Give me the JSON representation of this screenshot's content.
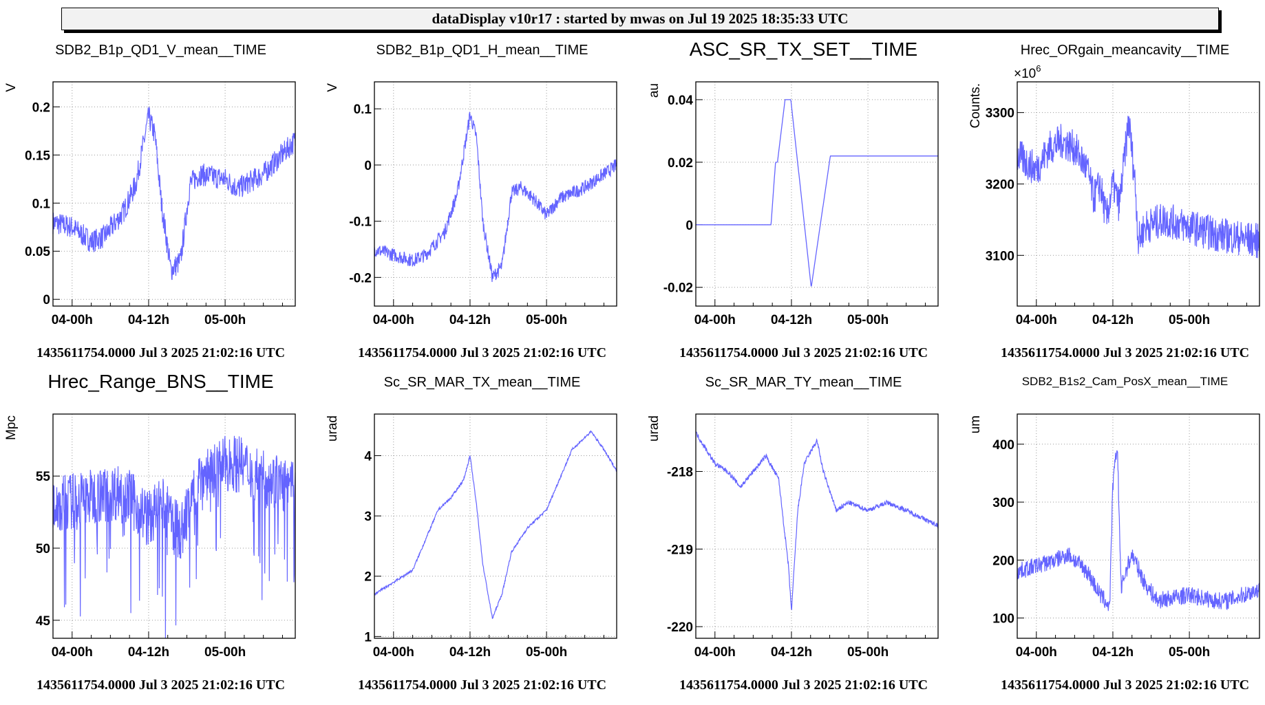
{
  "header": {
    "title": "dataDisplay v10r17 : started by mwas on Jul 19 2025 18:35:33 UTC"
  },
  "footer_text": "1435611754.0000 Jul 3 2025 21:02:16 UTC",
  "chart_data": [
    {
      "type": "line",
      "title": "SDB2_B1p_QD1_V_mean__TIME",
      "ylabel": "V",
      "xticks": [
        {
          "v": 0,
          "label": "04-00h"
        },
        {
          "v": 12,
          "label": "04-12h"
        },
        {
          "v": 24,
          "label": "05-00h"
        }
      ],
      "xlim": [
        -3,
        35
      ],
      "ylim": [
        -0.007,
        0.226
      ],
      "yticks": [
        {
          "v": 0,
          "label": "0"
        },
        {
          "v": 0.05,
          "label": "0.05"
        },
        {
          "v": 0.1,
          "label": "0.1"
        },
        {
          "v": 0.15,
          "label": "0.15"
        },
        {
          "v": 0.2,
          "label": "0.2"
        }
      ],
      "noise": 0.012,
      "x": [
        -3,
        0,
        3,
        5,
        8,
        10,
        12,
        13,
        14,
        15.5,
        17,
        18.5,
        20,
        24,
        26,
        30,
        35
      ],
      "y": [
        0.08,
        0.075,
        0.06,
        0.065,
        0.09,
        0.12,
        0.19,
        0.17,
        0.1,
        0.03,
        0.04,
        0.12,
        0.13,
        0.125,
        0.115,
        0.13,
        0.165
      ],
      "footer": "1435611754.0000 Jul 3 2025 21:02:16 UTC"
    },
    {
      "type": "line",
      "title": "SDB2_B1p_QD1_H_mean__TIME",
      "ylabel": "V",
      "xticks": [
        {
          "v": 0,
          "label": "04-00h"
        },
        {
          "v": 12,
          "label": "04-12h"
        },
        {
          "v": 24,
          "label": "05-00h"
        }
      ],
      "xlim": [
        -3,
        35
      ],
      "ylim": [
        -0.251,
        0.148
      ],
      "yticks": [
        {
          "v": -0.2,
          "label": "-0.2"
        },
        {
          "v": -0.1,
          "label": "-0.1"
        },
        {
          "v": 0,
          "label": "0"
        },
        {
          "v": 0.1,
          "label": "0.1"
        }
      ],
      "noise": 0.012,
      "x": [
        -3,
        0,
        3,
        5,
        8,
        10,
        12,
        13,
        14,
        15.5,
        17,
        18.5,
        20,
        22,
        24,
        26,
        30,
        35
      ],
      "y": [
        -0.15,
        -0.16,
        -0.17,
        -0.16,
        -0.12,
        -0.05,
        0.09,
        0.05,
        -0.1,
        -0.2,
        -0.18,
        -0.05,
        -0.04,
        -0.06,
        -0.09,
        -0.06,
        -0.04,
        0
      ],
      "footer": "1435611754.0000 Jul 3 2025 21:02:16 UTC"
    },
    {
      "type": "line",
      "title": "ASC_SR_TX_SET__TIME",
      "ylabel": "au",
      "xticks": [
        {
          "v": 0,
          "label": "04-00h"
        },
        {
          "v": 12,
          "label": "04-12h"
        },
        {
          "v": 24,
          "label": "05-00h"
        }
      ],
      "xlim": [
        -3,
        35
      ],
      "ylim": [
        -0.026,
        0.0457
      ],
      "yticks": [
        {
          "v": -0.02,
          "label": "-0.02"
        },
        {
          "v": 0,
          "label": "0"
        },
        {
          "v": 0.02,
          "label": "0.02"
        },
        {
          "v": 0.04,
          "label": "0.04"
        }
      ],
      "noise": 0,
      "x": [
        -3,
        8.8,
        9.5,
        9.8,
        11,
        11.9,
        15.1,
        18.1,
        35
      ],
      "y": [
        0,
        0,
        0.02,
        0.02,
        0.04,
        0.04,
        -0.02,
        0.022,
        0.022
      ],
      "footer": "1435611754.0000 Jul 3 2025 21:02:16 UTC"
    },
    {
      "type": "line",
      "title": "Hrec_ORgain_meancavity__TIME",
      "ylabel": "Counts.",
      "multiplier": "×10",
      "multiplier_exp": "6",
      "xticks": [
        {
          "v": 0,
          "label": "04-00h"
        },
        {
          "v": 12,
          "label": "04-12h"
        },
        {
          "v": 24,
          "label": "05-00h"
        }
      ],
      "xlim": [
        -3,
        35
      ],
      "ylim": [
        3029,
        3343
      ],
      "yticks": [
        {
          "v": 3100,
          "label": "3100"
        },
        {
          "v": 3200,
          "label": "3200"
        },
        {
          "v": 3300,
          "label": "3300"
        }
      ],
      "noise": 25,
      "x": [
        -3,
        0,
        2,
        4,
        6,
        8,
        9,
        10,
        11,
        12,
        13,
        14.5,
        15.5,
        16,
        17,
        20,
        24,
        28,
        35
      ],
      "y": [
        3240,
        3220,
        3250,
        3260,
        3250,
        3220,
        3180,
        3200,
        3150,
        3200,
        3170,
        3290,
        3200,
        3120,
        3140,
        3150,
        3140,
        3130,
        3120
      ],
      "footer": "1435611754.0000 Jul 3 2025 21:02:16 UTC"
    },
    {
      "type": "line",
      "title": "Hrec_Range_BNS__TIME",
      "ylabel": "Mpc",
      "xticks": [
        {
          "v": 0,
          "label": "04-00h"
        },
        {
          "v": 12,
          "label": "04-12h"
        },
        {
          "v": 24,
          "label": "05-00h"
        }
      ],
      "xlim": [
        -3,
        35
      ],
      "ylim": [
        43.75,
        59.3
      ],
      "yticks": [
        {
          "v": 45,
          "label": "45"
        },
        {
          "v": 50,
          "label": "50"
        },
        {
          "v": 55,
          "label": "55"
        }
      ],
      "noise": 2,
      "spikes": true,
      "x": [
        -3,
        8,
        12,
        14,
        17,
        20,
        25,
        30,
        35
      ],
      "y": [
        53,
        54,
        52,
        53,
        51,
        55,
        56,
        55,
        54
      ],
      "footer": "1435611754.0000 Jul 3 2025 21:02:16 UTC"
    },
    {
      "type": "line",
      "title": "Sc_SR_MAR_TX_mean__TIME",
      "ylabel": "urad",
      "xticks": [
        {
          "v": 0,
          "label": "04-00h"
        },
        {
          "v": 12,
          "label": "04-12h"
        },
        {
          "v": 24,
          "label": "05-00h"
        }
      ],
      "xlim": [
        -3,
        35
      ],
      "ylim": [
        0.97,
        4.69
      ],
      "yticks": [
        {
          "v": 1,
          "label": "1"
        },
        {
          "v": 2,
          "label": "2"
        },
        {
          "v": 3,
          "label": "3"
        },
        {
          "v": 4,
          "label": "4"
        }
      ],
      "noise": 0.02,
      "x": [
        -3,
        0,
        3,
        5,
        7,
        9,
        11,
        12,
        13,
        14,
        15.5,
        17,
        18.5,
        21,
        24,
        26,
        28,
        31,
        33,
        35
      ],
      "y": [
        1.7,
        1.9,
        2.1,
        2.6,
        3.1,
        3.3,
        3.6,
        4.0,
        3.2,
        2.2,
        1.3,
        1.7,
        2.4,
        2.8,
        3.1,
        3.6,
        4.1,
        4.4,
        4.1,
        3.75
      ],
      "footer": "1435611754.0000 Jul 3 2025 21:02:16 UTC"
    },
    {
      "type": "line",
      "title": "Sc_SR_MAR_TY_mean__TIME",
      "ylabel": "urad",
      "xticks": [
        {
          "v": 0,
          "label": "04-00h"
        },
        {
          "v": 12,
          "label": "04-12h"
        },
        {
          "v": 24,
          "label": "05-00h"
        }
      ],
      "xlim": [
        -3,
        35
      ],
      "ylim": [
        -220.15,
        -217.26
      ],
      "yticks": [
        {
          "v": -220,
          "label": "-220"
        },
        {
          "v": -219,
          "label": "-219"
        },
        {
          "v": -218,
          "label": "-218"
        }
      ],
      "noise": 0.03,
      "x": [
        -3,
        0,
        2,
        4,
        6,
        8,
        10,
        11.5,
        12,
        13,
        14,
        16,
        17,
        19,
        21,
        24,
        27,
        30,
        35
      ],
      "y": [
        -217.5,
        -217.9,
        -218.0,
        -218.2,
        -218.0,
        -217.8,
        -218.1,
        -219.2,
        -219.8,
        -218.5,
        -217.9,
        -217.6,
        -218.0,
        -218.5,
        -218.4,
        -218.5,
        -218.4,
        -218.5,
        -218.7
      ],
      "footer": "1435611754.0000 Jul 3 2025 21:02:16 UTC"
    },
    {
      "type": "line",
      "title": "SDB2_B1s2_Cam_PosX_mean__TIME",
      "ylabel": "um",
      "xticks": [
        {
          "v": 0,
          "label": "04-00h"
        },
        {
          "v": 12,
          "label": "04-12h"
        },
        {
          "v": 24,
          "label": "05-00h"
        }
      ],
      "xlim": [
        -3,
        35
      ],
      "ylim": [
        65,
        452
      ],
      "yticks": [
        {
          "v": 100,
          "label": "100"
        },
        {
          "v": 200,
          "label": "200"
        },
        {
          "v": 300,
          "label": "300"
        },
        {
          "v": 400,
          "label": "400"
        }
      ],
      "noise": 15,
      "x": [
        -3,
        0,
        3,
        5,
        8,
        10,
        11.5,
        12,
        12.7,
        13.3,
        14,
        15,
        17,
        19,
        24,
        28,
        30,
        35
      ],
      "y": [
        180,
        190,
        200,
        210,
        180,
        140,
        120,
        330,
        400,
        150,
        180,
        210,
        160,
        130,
        140,
        130,
        130,
        150
      ],
      "footer": "1435611754.0000 Jul 3 2025 21:02:16 UTC"
    }
  ],
  "style": {
    "line_color": "#6464ff"
  }
}
